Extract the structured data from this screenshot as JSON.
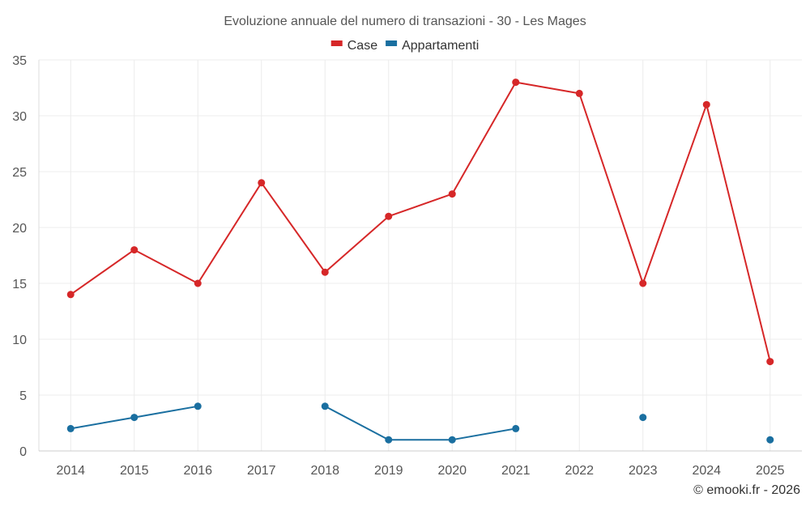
{
  "chart_data": {
    "type": "line",
    "title": "Evoluzione annuale del numero di transazioni - 30 - Les Mages",
    "categories": [
      "2014",
      "2015",
      "2016",
      "2017",
      "2018",
      "2019",
      "2020",
      "2021",
      "2022",
      "2023",
      "2024",
      "2025"
    ],
    "series": [
      {
        "name": "Case",
        "color": "#d62728",
        "values": [
          14,
          18,
          15,
          24,
          16,
          21,
          23,
          33,
          32,
          15,
          31,
          8
        ]
      },
      {
        "name": "Appartamenti",
        "color": "#1a6fa0",
        "values": [
          2,
          3,
          4,
          null,
          4,
          1,
          1,
          2,
          null,
          3,
          null,
          1
        ]
      }
    ],
    "ylim": [
      0,
      35
    ],
    "yticks": [
      0,
      5,
      10,
      15,
      20,
      25,
      30,
      35
    ],
    "xlabel": "",
    "ylabel": "",
    "grid": true,
    "legend": "top-center"
  },
  "credit": "© emooki.fr - 2026"
}
